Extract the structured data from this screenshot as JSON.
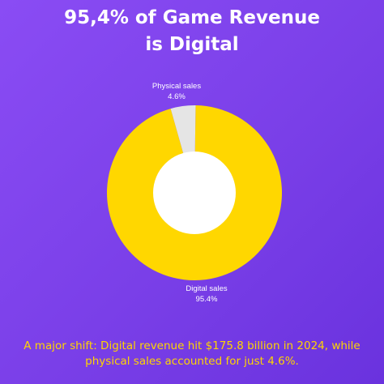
{
  "header": {
    "title_line1": "95,4% of Game Revenue",
    "title_line2": "is Digital"
  },
  "chart_data": {
    "type": "pie",
    "donut": true,
    "categories": [
      "Digital sales",
      "Physical sales"
    ],
    "values": [
      95.4,
      4.6
    ],
    "unit": "%",
    "data_labels": [
      "95.4%",
      "4.6%"
    ],
    "colors": {
      "Digital sales": "#ffd700",
      "Physical sales": "#e5e5e5"
    }
  },
  "footer": {
    "caption_line1": "A major shift: Digital revenue hit $175.8 billion in 2024, while",
    "caption_line2": "physical sales accounted for just 4.6%."
  },
  "colors": {
    "background_start": "#8a4cf4",
    "background_end": "#6a32de",
    "title": "#ffffff",
    "caption": "#ffd400",
    "hole": "#ffffff"
  }
}
